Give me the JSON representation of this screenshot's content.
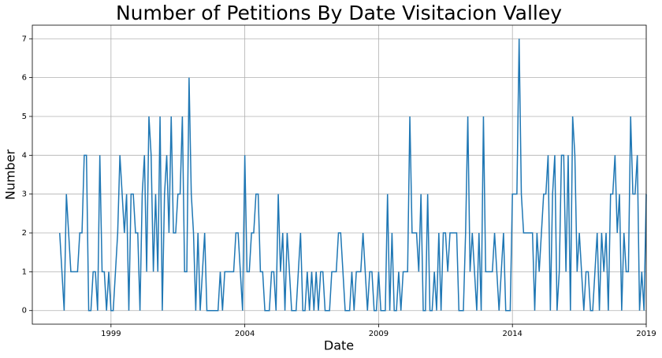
{
  "chart_data": {
    "type": "line",
    "title": "Number of Petitions By Date Visitacion Valley",
    "x_label": "Date",
    "y_label": "Number",
    "color": "#1f77b4",
    "grid": true,
    "xlim": [
      1996.06,
      2019
    ],
    "xticks": [
      1999,
      2004,
      2009,
      2014,
      2019
    ],
    "ylim": [
      -0.35,
      7.35
    ],
    "yticks": [
      0,
      1,
      2,
      3,
      4,
      5,
      6,
      7
    ],
    "x": [
      1997.083,
      1997.167,
      1997.25,
      1997.333,
      1997.417,
      1997.5,
      1997.583,
      1997.667,
      1997.75,
      1997.833,
      1997.917,
      1998.0,
      1998.083,
      1998.167,
      1998.25,
      1998.333,
      1998.417,
      1998.5,
      1998.583,
      1998.667,
      1998.75,
      1998.833,
      1998.917,
      1999.0,
      1999.083,
      1999.167,
      1999.25,
      1999.333,
      1999.417,
      1999.5,
      1999.583,
      1999.667,
      1999.75,
      1999.833,
      1999.917,
      2000.0,
      2000.083,
      2000.167,
      2000.25,
      2000.333,
      2000.417,
      2000.5,
      2000.583,
      2000.667,
      2000.75,
      2000.833,
      2000.917,
      2001.0,
      2001.083,
      2001.167,
      2001.25,
      2001.333,
      2001.417,
      2001.5,
      2001.583,
      2001.667,
      2001.75,
      2001.833,
      2001.917,
      2002.0,
      2002.083,
      2002.167,
      2002.25,
      2002.333,
      2002.417,
      2002.5,
      2002.583,
      2002.667,
      2002.75,
      2002.833,
      2002.917,
      2003.0,
      2003.083,
      2003.167,
      2003.25,
      2003.333,
      2003.417,
      2003.5,
      2003.583,
      2003.667,
      2003.75,
      2003.833,
      2003.917,
      2004.0,
      2004.083,
      2004.167,
      2004.25,
      2004.333,
      2004.417,
      2004.5,
      2004.583,
      2004.667,
      2004.75,
      2004.833,
      2004.917,
      2005.0,
      2005.083,
      2005.167,
      2005.25,
      2005.333,
      2005.417,
      2005.5,
      2005.583,
      2005.667,
      2005.75,
      2005.833,
      2005.917,
      2006.0,
      2006.083,
      2006.167,
      2006.25,
      2006.333,
      2006.417,
      2006.5,
      2006.583,
      2006.667,
      2006.75,
      2006.833,
      2006.917,
      2007.0,
      2007.083,
      2007.167,
      2007.25,
      2007.333,
      2007.417,
      2007.5,
      2007.583,
      2007.667,
      2007.75,
      2007.833,
      2007.917,
      2008.0,
      2008.083,
      2008.167,
      2008.25,
      2008.333,
      2008.417,
      2008.5,
      2008.583,
      2008.667,
      2008.75,
      2008.833,
      2008.917,
      2009.0,
      2009.083,
      2009.167,
      2009.25,
      2009.333,
      2009.417,
      2009.5,
      2009.583,
      2009.667,
      2009.75,
      2009.833,
      2009.917,
      2010.0,
      2010.083,
      2010.167,
      2010.25,
      2010.333,
      2010.417,
      2010.5,
      2010.583,
      2010.667,
      2010.75,
      2010.833,
      2010.917,
      2011.0,
      2011.083,
      2011.167,
      2011.25,
      2011.333,
      2011.417,
      2011.5,
      2011.583,
      2011.667,
      2011.75,
      2011.833,
      2011.917,
      2012.0,
      2012.083,
      2012.167,
      2012.25,
      2012.333,
      2012.417,
      2012.5,
      2012.583,
      2012.667,
      2012.75,
      2012.833,
      2012.917,
      2013.0,
      2013.083,
      2013.167,
      2013.25,
      2013.333,
      2013.417,
      2013.5,
      2013.583,
      2013.667,
      2013.75,
      2013.833,
      2013.917,
      2014.0,
      2014.083,
      2014.167,
      2014.25,
      2014.333,
      2014.417,
      2014.5,
      2014.583,
      2014.667,
      2014.75,
      2014.833,
      2014.917,
      2015.0,
      2015.083,
      2015.167,
      2015.25,
      2015.333,
      2015.417,
      2015.5,
      2015.583,
      2015.667,
      2015.75,
      2015.833,
      2015.917,
      2016.0,
      2016.083,
      2016.167,
      2016.25,
      2016.333,
      2016.417,
      2016.5,
      2016.583,
      2016.667,
      2016.75,
      2016.833,
      2016.917,
      2017.0,
      2017.083,
      2017.167,
      2017.25,
      2017.333,
      2017.417,
      2017.5,
      2017.583,
      2017.667,
      2017.75,
      2017.833,
      2017.917,
      2018.0,
      2018.083,
      2018.167,
      2018.25,
      2018.333,
      2018.417,
      2018.5,
      2018.583,
      2018.667,
      2018.75,
      2018.833,
      2018.917,
      2019.0
    ],
    "values": [
      2,
      1,
      0,
      3,
      2,
      1,
      1,
      1,
      1,
      2,
      2,
      4,
      4,
      0,
      0,
      1,
      1,
      0,
      4,
      1,
      1,
      0,
      1,
      0,
      0,
      1,
      2,
      4,
      3,
      2,
      3,
      0,
      3,
      3,
      2,
      2,
      0,
      3,
      4,
      1,
      5,
      4,
      1,
      3,
      1,
      5,
      0,
      3,
      4,
      2,
      5,
      2,
      2,
      3,
      3,
      5,
      1,
      1,
      6,
      3,
      2,
      0,
      2,
      0,
      1,
      2,
      0,
      0,
      0,
      0,
      0,
      0,
      1,
      0,
      1,
      1,
      1,
      1,
      1,
      2,
      2,
      1,
      0,
      4,
      1,
      1,
      2,
      2,
      3,
      3,
      1,
      1,
      0,
      0,
      0,
      1,
      1,
      0,
      3,
      1,
      2,
      0,
      2,
      1,
      0,
      0,
      0,
      1,
      2,
      0,
      0,
      1,
      0,
      1,
      0,
      1,
      0,
      1,
      1,
      0,
      0,
      0,
      1,
      1,
      1,
      2,
      2,
      1,
      0,
      0,
      0,
      1,
      0,
      1,
      1,
      1,
      2,
      1,
      0,
      1,
      1,
      0,
      0,
      1,
      0,
      0,
      0,
      3,
      0,
      2,
      0,
      0,
      1,
      0,
      1,
      1,
      1,
      5,
      2,
      2,
      2,
      1,
      3,
      0,
      0,
      3,
      0,
      0,
      1,
      0,
      2,
      0,
      2,
      2,
      1,
      2,
      2,
      2,
      2,
      0,
      0,
      0,
      2,
      5,
      1,
      2,
      1,
      0,
      2,
      0,
      5,
      1,
      1,
      1,
      1,
      2,
      1,
      0,
      1,
      2,
      0,
      0,
      0,
      3,
      3,
      3,
      7,
      3,
      2,
      2,
      2,
      2,
      2,
      0,
      2,
      1,
      2,
      3,
      3,
      4,
      0,
      3,
      4,
      0,
      1,
      4,
      4,
      1,
      4,
      0,
      5,
      4,
      1,
      2,
      1,
      0,
      1,
      1,
      0,
      0,
      1,
      2,
      0,
      2,
      1,
      2,
      0,
      3,
      3,
      4,
      2,
      3,
      0,
      2,
      1,
      1,
      5,
      3,
      3,
      4,
      0,
      1,
      0,
      3
    ]
  }
}
